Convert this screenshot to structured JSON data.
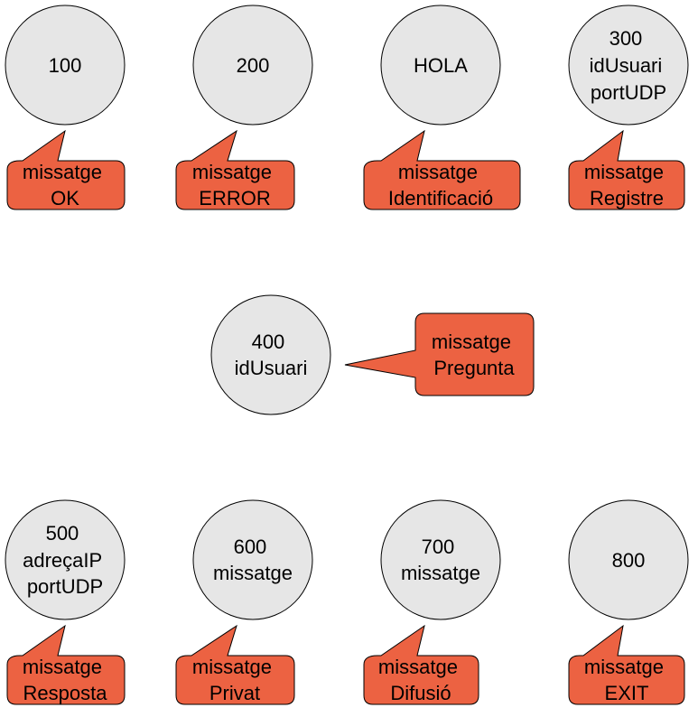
{
  "nodes": [
    {
      "id": "n100",
      "lines": [
        "100"
      ],
      "callout": [
        "missatge",
        "OK"
      ]
    },
    {
      "id": "n200",
      "lines": [
        "200"
      ],
      "callout": [
        "missatge",
        "ERROR"
      ]
    },
    {
      "id": "nhola",
      "lines": [
        "HOLA"
      ],
      "callout": [
        "missatge",
        "Identificació"
      ]
    },
    {
      "id": "n300",
      "lines": [
        "300",
        "idUsuari",
        "portUDP"
      ],
      "callout": [
        "missatge",
        "Registre"
      ]
    },
    {
      "id": "n400",
      "lines": [
        "400",
        "idUsuari"
      ],
      "callout": [
        "missatge",
        "Pregunta"
      ]
    },
    {
      "id": "n500",
      "lines": [
        "500",
        "adreçaIP",
        "portUDP"
      ],
      "callout": [
        "missatge",
        "Resposta"
      ]
    },
    {
      "id": "n600",
      "lines": [
        "600",
        "missatge"
      ],
      "callout": [
        "missatge",
        "Privat"
      ]
    },
    {
      "id": "n700",
      "lines": [
        "700",
        "missatge"
      ],
      "callout": [
        "missatge",
        "Difusió"
      ]
    },
    {
      "id": "n800",
      "lines": [
        "800"
      ],
      "callout": [
        "missatge",
        "EXIT"
      ]
    }
  ],
  "colors": {
    "circle_fill": "#e6e6e6",
    "callout_fill": "#ec6242",
    "outline": "#000000"
  }
}
